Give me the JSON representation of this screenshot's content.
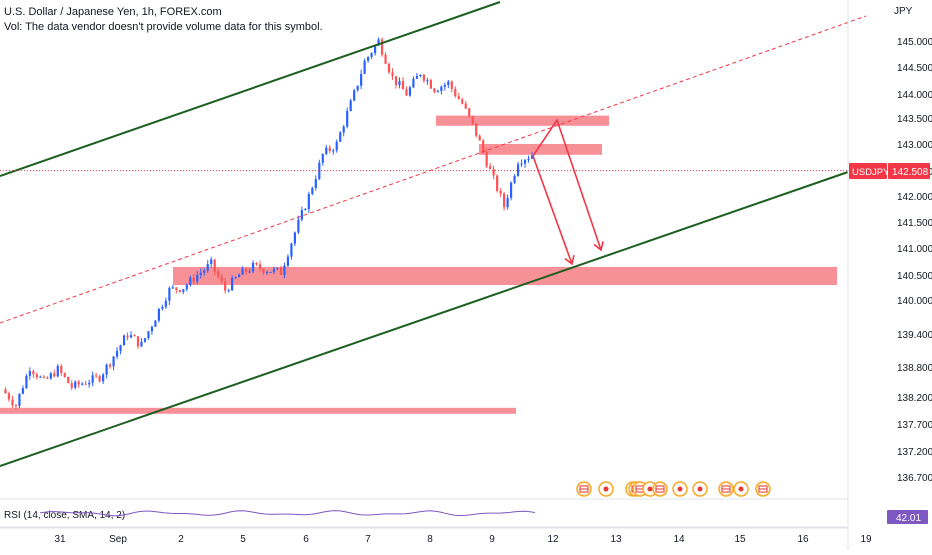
{
  "header": {
    "title": "U.S. Dollar / Japanese Yen, 1h, FOREX.com",
    "volume_note": "Vol: The data vendor doesn't provide volume data for this symbol.",
    "currency": "JPY"
  },
  "price_badge": {
    "symbol": "USDJPY",
    "value": "142.508",
    "color": "#f23645"
  },
  "rsi_panel": {
    "label": "RSI (14, close, SMA, 14, 2)",
    "value": "42.01",
    "line_color": "#7e57c2",
    "badge_color": "#7e57c2"
  },
  "colors": {
    "channel": "#1b5e20",
    "midline": "#f23645",
    "zones": "#f77c85",
    "projection_arrows": "#f23645",
    "candle_up": "#2962ff",
    "candle_down": "#ff5252",
    "event_marker_red": "#e53935",
    "event_marker_gold": "#f9a825"
  },
  "chart_data": {
    "type": "candlestick",
    "instrument": "USDJPY",
    "timeframe": "1h",
    "y_axis": {
      "ticks": [
        "145.000",
        "144.500",
        "144.000",
        "143.500",
        "143.000",
        "142.500",
        "142.000",
        "141.500",
        "141.000",
        "140.500",
        "140.000",
        "139.400",
        "138.800",
        "138.200",
        "137.700",
        "137.200",
        "136.700"
      ],
      "ylim": [
        136.45,
        145.55
      ]
    },
    "x_axis": {
      "ticks": [
        "31",
        "Sep",
        "2",
        "5",
        "6",
        "7",
        "8",
        "9",
        "12",
        "13",
        "14",
        "15",
        "16",
        "19"
      ]
    },
    "price_path": [
      [
        "31",
        138.35
      ],
      [
        "31",
        138.05
      ],
      [
        "31",
        138.8
      ],
      [
        "31",
        138.5
      ],
      [
        "31",
        138.75
      ],
      [
        "31",
        138.4
      ],
      [
        "Sep",
        138.5
      ],
      [
        "Sep",
        138.6
      ],
      [
        "Sep",
        139.0
      ],
      [
        "Sep",
        139.4
      ],
      [
        "Sep",
        139.2
      ],
      [
        "Sep",
        139.7
      ],
      [
        "2",
        140.2
      ],
      [
        "2",
        140.25
      ],
      [
        "2",
        140.5
      ],
      [
        "2",
        140.7
      ],
      [
        "2",
        140.2
      ],
      [
        "5",
        140.5
      ],
      [
        "5",
        140.65
      ],
      [
        "5",
        140.6
      ],
      [
        "6",
        140.55
      ],
      [
        "6",
        141.3
      ],
      [
        "6",
        142.0
      ],
      [
        "6",
        142.8
      ],
      [
        "6",
        143.0
      ],
      [
        "7",
        143.8
      ],
      [
        "7",
        144.6
      ],
      [
        "7",
        145.0
      ],
      [
        "7",
        144.3
      ],
      [
        "8",
        144.0
      ],
      [
        "8",
        144.4
      ],
      [
        "8",
        144.1
      ],
      [
        "8",
        144.2
      ],
      [
        "8",
        143.8
      ],
      [
        "9",
        143.2
      ],
      [
        "9",
        142.5
      ],
      [
        "9",
        141.8
      ],
      [
        "9",
        142.7
      ],
      [
        "9",
        142.8
      ]
    ],
    "horizontal_zones": [
      {
        "from": 143.55,
        "to": 143.35
      },
      {
        "from": 143.0,
        "to": 142.8
      },
      {
        "from": 140.65,
        "to": 140.3
      },
      {
        "from": 138.0,
        "to": 137.9
      }
    ],
    "channel": {
      "upper_line": [
        [
          "31",
          142.5
        ],
        [
          "9",
          147.0
        ]
      ],
      "lower_line": [
        [
          "31",
          136.9
        ],
        [
          "19",
          142.5
        ]
      ],
      "mid_dashed_line": [
        [
          "31",
          139.6
        ],
        [
          "19",
          145.1
        ]
      ]
    },
    "projection_arrows": [
      {
        "path": [
          [
            "12",
            142.8
          ],
          [
            "12",
            143.5
          ],
          [
            "13",
            141.0
          ]
        ]
      },
      {
        "path": [
          [
            "12",
            142.8
          ],
          [
            "12",
            140.5
          ]
        ]
      }
    ],
    "event_markers": [
      "us-flag",
      "eu-red",
      "jp-red",
      "us-flag",
      "us-flag",
      "eu-red",
      "us-flag",
      "eu-red",
      "jp-red",
      "us-flag",
      "jp-red",
      "us-flag"
    ],
    "current_price": 142.508,
    "rsi": {
      "value": 42.01,
      "period": 14,
      "source": "close",
      "smoothing": "SMA"
    }
  }
}
